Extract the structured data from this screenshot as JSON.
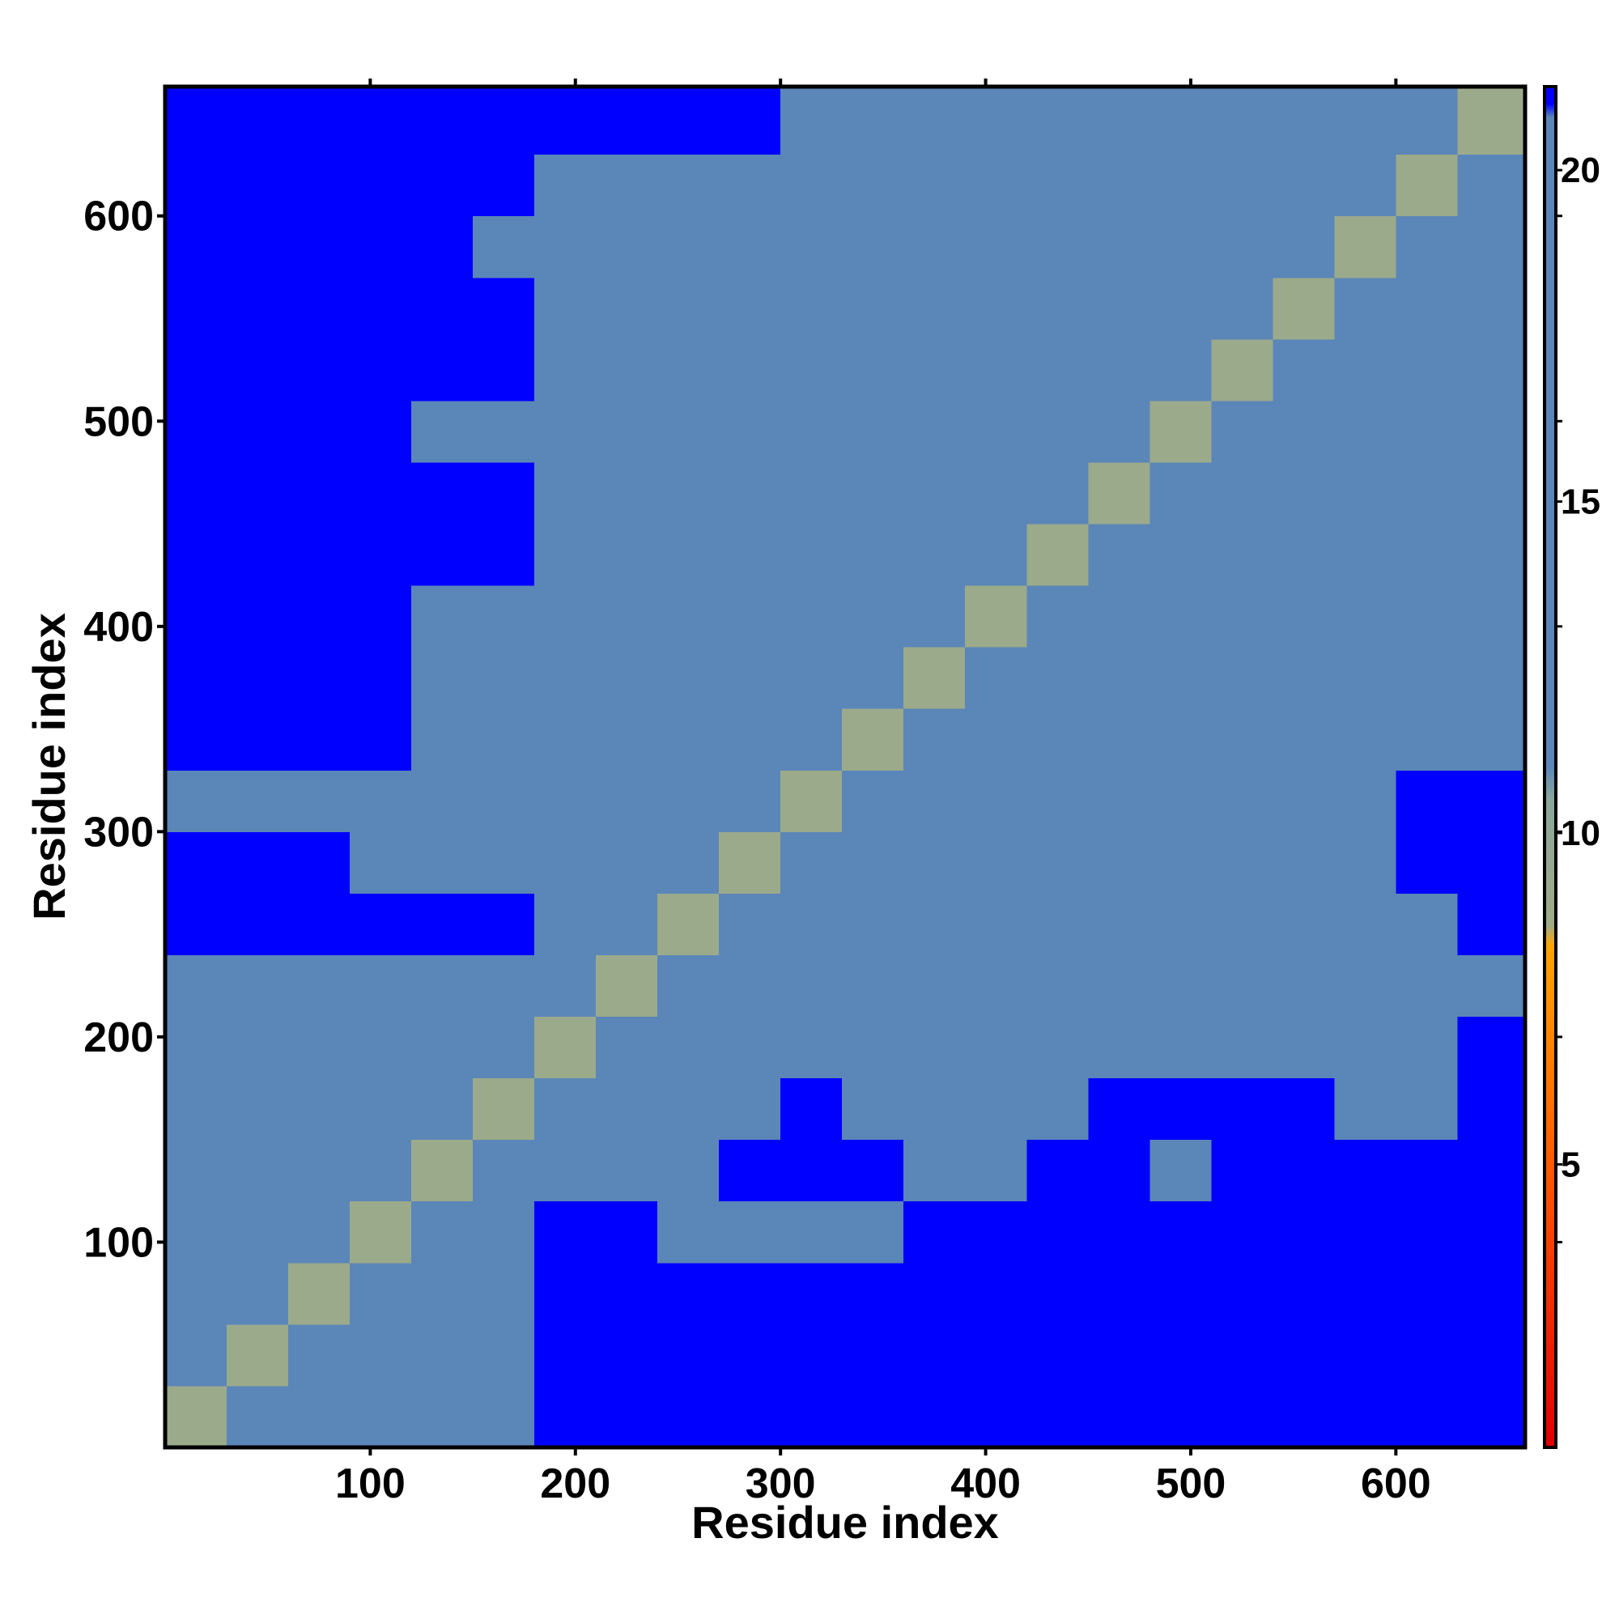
{
  "chart_data": {
    "type": "heatmap",
    "x_label": "Residue index",
    "y_label": "Residue index",
    "xlim": [
      0,
      663
    ],
    "ylim": [
      0,
      663
    ],
    "xticks": [
      100,
      200,
      300,
      400,
      500,
      600
    ],
    "yticks": [
      100,
      200,
      300,
      400,
      500,
      600
    ],
    "xbins": [
      0,
      30,
      60,
      90,
      120,
      150,
      180,
      210,
      240,
      270,
      300,
      330,
      360,
      390,
      420,
      450,
      480,
      510,
      540,
      570,
      600,
      630,
      663
    ],
    "ybins": [
      0,
      30,
      60,
      90,
      120,
      150,
      180,
      210,
      240,
      270,
      300,
      330,
      360,
      390,
      420,
      450,
      480,
      510,
      540,
      570,
      600,
      630,
      663
    ],
    "clim": [
      0.73,
      21.26
    ],
    "cticks": [
      5,
      10,
      15,
      20
    ],
    "colorscale": [
      {
        "value": 0.73,
        "color": "#e00000"
      },
      {
        "value": 5,
        "color": "#ff5a00"
      },
      {
        "value": 8.3,
        "color": "#ffa500"
      },
      {
        "value": 8.6,
        "color": "#a0ab86"
      },
      {
        "value": 10.5,
        "color": "#8aa69c"
      },
      {
        "value": 11,
        "color": "#5b86b8"
      },
      {
        "value": 20.8,
        "color": "#5b86b8"
      },
      {
        "value": 21,
        "color": "#0000ff"
      },
      {
        "value": 21.26,
        "color": "#0000ff"
      }
    ],
    "z": [
      [
        9,
        15,
        15,
        15,
        19,
        20,
        21.3,
        21.3,
        21.3,
        21.3,
        21.3,
        21.3,
        21.3,
        21.3,
        21.3,
        21.3,
        21.3,
        21.3,
        21.3,
        21.3,
        21.3,
        21.3
      ],
      [
        15,
        9,
        15,
        15,
        19,
        20,
        21.3,
        21.3,
        21.3,
        21.3,
        21.3,
        21.3,
        21.3,
        21.3,
        21.3,
        21.3,
        21.3,
        21.3,
        21.3,
        21.3,
        21.3,
        21.3
      ],
      [
        15,
        15,
        9,
        15,
        19,
        20,
        21.3,
        21.3,
        21.3,
        21.3,
        21.3,
        21.3,
        21.3,
        21.3,
        21.3,
        21.3,
        21.3,
        21.3,
        21.3,
        21.3,
        21.3,
        21.3
      ],
      [
        15,
        15,
        15,
        9,
        16,
        19,
        21.3,
        21.3,
        20,
        20,
        20,
        20,
        21.3,
        21.3,
        21.3,
        21.3,
        21.3,
        21.3,
        21.3,
        21.3,
        21.3,
        21.3
      ],
      [
        18,
        18,
        18,
        18,
        9,
        15,
        19,
        20,
        20,
        21,
        21.3,
        21.3,
        17,
        16,
        21.3,
        21.3,
        19,
        21.3,
        21.3,
        21.3,
        21.3,
        21.3
      ],
      [
        19,
        19,
        19,
        19,
        14,
        9,
        17,
        19,
        19,
        19,
        21.3,
        20,
        18,
        16,
        18,
        21.3,
        21.3,
        21.3,
        21.3,
        17,
        18,
        21.3
      ],
      [
        20,
        20,
        20,
        20,
        20,
        20,
        9,
        16,
        19,
        19,
        19,
        18,
        19,
        18,
        20,
        19,
        20,
        19,
        18,
        16,
        17,
        21.3
      ],
      [
        20,
        20,
        20,
        20,
        20,
        20,
        16,
        9,
        14,
        15,
        16,
        15,
        16,
        18,
        17,
        15,
        19,
        18,
        17,
        17,
        18,
        19
      ],
      [
        21,
        21,
        21,
        21,
        21,
        21,
        18,
        14,
        9,
        13,
        13,
        16,
        17,
        17,
        17,
        16,
        19,
        19,
        18,
        17,
        19,
        21.3
      ],
      [
        21,
        21,
        21,
        20,
        20,
        20,
        17,
        15,
        13,
        9,
        12,
        15,
        17,
        16,
        15,
        17,
        19,
        19,
        17,
        19,
        21.3,
        21.3
      ],
      [
        20,
        20,
        20,
        20,
        20,
        20,
        18,
        14,
        13,
        12,
        9,
        14,
        17,
        17,
        17,
        17,
        18,
        17,
        17,
        18,
        21.3,
        21.3
      ],
      [
        21,
        21,
        21,
        21,
        20,
        20,
        18,
        15,
        16,
        14,
        14,
        9,
        15,
        17,
        17,
        17,
        18,
        17,
        16,
        17,
        18,
        19
      ],
      [
        21.3,
        21.3,
        21.3,
        21.3,
        17,
        16,
        19,
        17,
        17,
        17,
        17,
        15,
        9,
        14,
        16,
        16,
        16,
        15,
        15,
        17,
        18,
        18
      ],
      [
        21.3,
        21.3,
        21.3,
        21.3,
        18,
        15,
        18,
        17,
        17,
        16,
        18,
        15,
        14,
        9,
        14,
        16,
        17,
        17,
        15,
        18,
        17,
        17
      ],
      [
        21.3,
        21.3,
        21.3,
        21.3,
        21.3,
        21.3,
        19,
        17,
        16,
        16,
        18,
        16,
        15,
        15,
        9,
        14,
        17,
        16,
        17,
        18,
        17,
        18
      ],
      [
        21.3,
        21.3,
        21.3,
        21.3,
        21.3,
        21.3,
        19,
        18,
        16,
        19,
        17,
        16,
        16,
        17,
        15,
        9,
        15,
        17,
        17,
        16,
        17,
        17
      ],
      [
        21.3,
        21.3,
        21.3,
        21.3,
        17,
        20,
        19,
        19,
        19,
        19,
        18,
        17,
        15,
        17,
        17,
        15,
        9,
        14,
        17,
        19,
        17,
        18
      ],
      [
        21.3,
        21.3,
        21.3,
        21.3,
        21.3,
        21.3,
        19,
        18,
        18,
        18,
        19,
        16,
        17,
        17,
        15,
        16,
        14,
        9,
        14,
        17,
        18,
        16
      ],
      [
        21.3,
        21.3,
        21.3,
        21.3,
        21.3,
        21.3,
        18,
        17,
        19,
        17,
        16,
        15,
        17,
        18,
        18,
        17,
        16,
        14,
        9,
        14,
        17,
        18
      ],
      [
        21.3,
        21.3,
        21.3,
        21.3,
        21.3,
        17,
        16,
        18,
        18,
        19,
        18,
        16,
        16,
        15,
        17,
        17,
        17,
        17,
        15,
        9,
        15,
        17
      ],
      [
        21.3,
        21.3,
        21.3,
        21.3,
        21.3,
        21.3,
        19,
        20,
        19,
        19,
        18,
        17,
        17,
        15,
        17,
        16,
        17,
        17,
        16,
        15,
        9,
        15
      ],
      [
        21.3,
        21.3,
        21.3,
        21.3,
        21.3,
        21.3,
        21.3,
        21.3,
        21.3,
        21.3,
        20,
        18,
        17,
        17,
        18,
        16,
        17,
        18,
        17,
        18,
        15,
        9
      ]
    ]
  }
}
